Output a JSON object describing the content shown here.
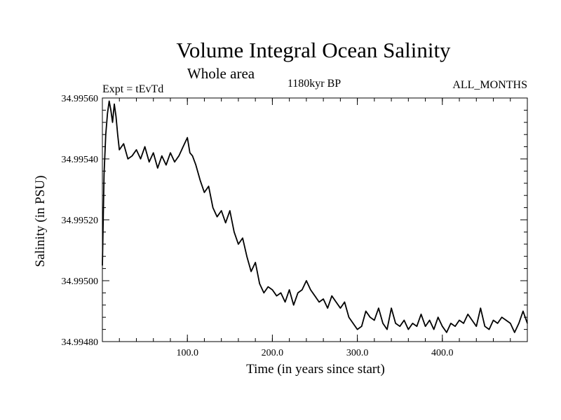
{
  "chart_data": {
    "type": "line",
    "title": "Volume Integral Ocean Salinity",
    "subtitle": "Whole area",
    "annotations": {
      "experiment": "Expt = tEvTd",
      "period": "1180kyr BP",
      "months": "ALL_MONTHS"
    },
    "xlabel": "Time (in years since start)",
    "ylabel": "Salinity (in PSU)",
    "xlim": [
      0,
      500
    ],
    "ylim": [
      34.9948,
      34.9956
    ],
    "x_ticks": [
      100,
      200,
      300,
      400
    ],
    "x_tick_labels": [
      "100.0",
      "200.0",
      "300.0",
      "400.0"
    ],
    "y_ticks": [
      34.9948,
      34.995,
      34.9952,
      34.9954,
      34.9956
    ],
    "y_tick_labels": [
      "34.99480",
      "34.99500",
      "34.99520",
      "34.99540",
      "34.99560"
    ],
    "grid": false,
    "series": [
      {
        "name": "Salinity",
        "color": "#000000",
        "x": [
          0,
          2,
          4,
          6,
          8,
          10,
          12,
          14,
          16,
          18,
          20,
          25,
          30,
          35,
          40,
          45,
          50,
          55,
          60,
          65,
          70,
          75,
          80,
          85,
          90,
          95,
          100,
          103,
          106,
          110,
          115,
          120,
          125,
          130,
          135,
          140,
          145,
          150,
          155,
          160,
          165,
          170,
          175,
          180,
          185,
          190,
          195,
          200,
          205,
          210,
          215,
          220,
          225,
          230,
          235,
          240,
          245,
          250,
          255,
          260,
          265,
          270,
          275,
          280,
          285,
          290,
          295,
          300,
          305,
          310,
          315,
          320,
          325,
          330,
          335,
          340,
          345,
          350,
          355,
          360,
          365,
          370,
          375,
          380,
          385,
          390,
          395,
          400,
          405,
          410,
          415,
          420,
          425,
          430,
          435,
          440,
          445,
          450,
          455,
          460,
          465,
          470,
          475,
          480,
          485,
          490,
          495,
          500
        ],
        "y": [
          34.99505,
          34.99535,
          34.99548,
          34.99555,
          34.99559,
          34.99556,
          34.99552,
          34.99558,
          34.99554,
          34.99548,
          34.99543,
          34.99545,
          34.9954,
          34.99541,
          34.99543,
          34.9954,
          34.99544,
          34.99539,
          34.99542,
          34.99537,
          34.99541,
          34.99538,
          34.99542,
          34.99539,
          34.99541,
          34.99544,
          34.99547,
          34.99542,
          34.99541,
          34.99538,
          34.99533,
          34.99529,
          34.99531,
          34.99524,
          34.99521,
          34.99523,
          34.99519,
          34.99523,
          34.99516,
          34.99512,
          34.99514,
          34.99508,
          34.99503,
          34.99506,
          34.99499,
          34.99496,
          34.99498,
          34.99497,
          34.99495,
          34.99496,
          34.99493,
          34.99497,
          34.99492,
          34.99496,
          34.99497,
          34.995,
          34.99497,
          34.99495,
          34.99493,
          34.99494,
          34.99491,
          34.99495,
          34.99493,
          34.99491,
          34.99493,
          34.99488,
          34.99486,
          34.99484,
          34.99485,
          34.9949,
          34.99488,
          34.99487,
          34.99491,
          34.99486,
          34.99484,
          34.99491,
          34.99486,
          34.99485,
          34.99487,
          34.99484,
          34.99486,
          34.99485,
          34.99489,
          34.99485,
          34.99487,
          34.99484,
          34.99488,
          34.99485,
          34.99483,
          34.99486,
          34.99485,
          34.99487,
          34.99486,
          34.99489,
          34.99487,
          34.99485,
          34.99491,
          34.99485,
          34.99484,
          34.99487,
          34.99486,
          34.99488,
          34.99487,
          34.99486,
          34.99483,
          34.99486,
          34.9949,
          34.99486
        ]
      }
    ]
  }
}
